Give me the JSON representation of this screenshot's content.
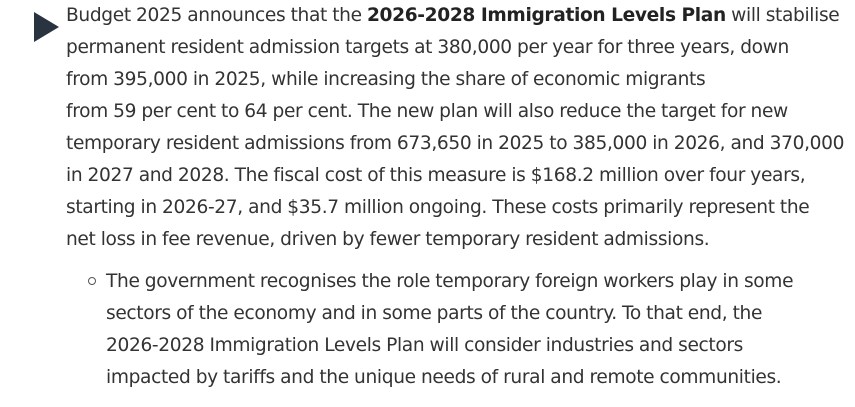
{
  "main_item": {
    "bullet_icon": "triangle-right-icon",
    "lines": {
      "l1_pre": "Budget 2025 announces that the ",
      "l1_bold": "2026-2028 Immigration Levels Plan",
      "l1_post": " will stabilise",
      "l2": "permanent resident admission targets at 380,000 per year for three years, down",
      "l3": "from 395,000 in 2025, while increasing the share of economic migrants",
      "l4": "from 59 per cent to 64 per cent. The new plan will also reduce the target for new",
      "l5": "temporary resident admissions from 673,650 in 2025 to 385,000 in 2026, and 370,000",
      "l6": "in 2027 and 2028. The fiscal cost of this measure is $168.2 million over four years,",
      "l7": "starting in 2026-27, and $35.7 million ongoing. These costs primarily represent the",
      "l8": "net loss in fee revenue, driven by fewer temporary resident admissions."
    }
  },
  "sub_item": {
    "bullet_icon": "circle-outline-icon",
    "lines": {
      "l1": "The government recognises the role temporary foreign workers play in some",
      "l2": "sectors of the economy and in some parts of the country. To that end, the",
      "l3": "2026-2028 Immigration Levels Plan will consider industries and sectors",
      "l4": "impacted by tariffs and the unique needs of rural and remote communities."
    }
  }
}
